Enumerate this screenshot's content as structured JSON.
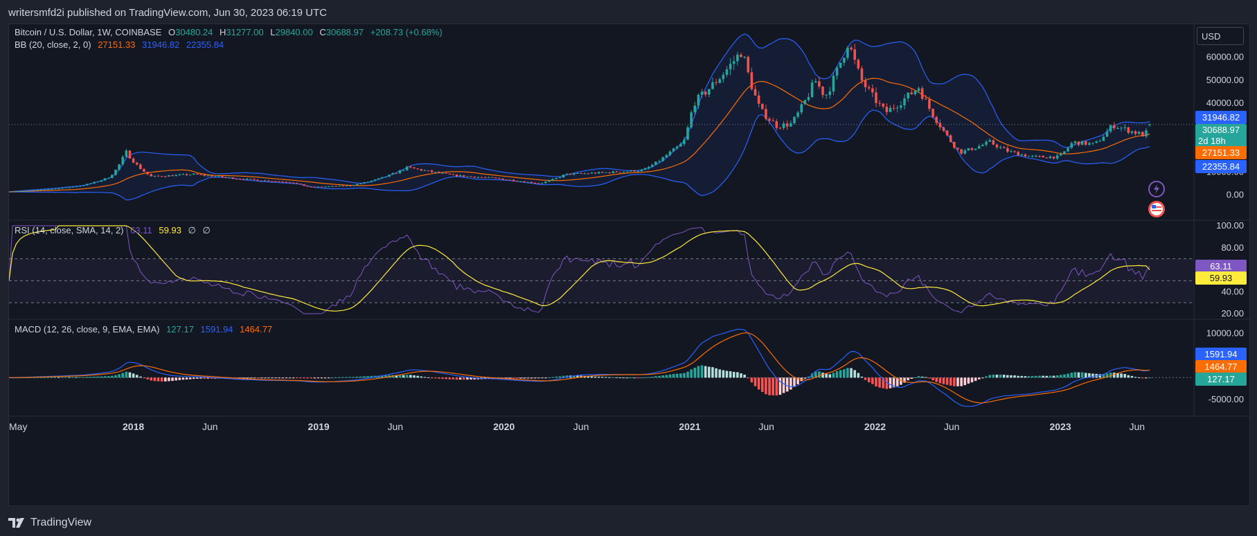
{
  "header": {
    "publisher_line": "writersmfd2i published on TradingView.com, Jun 30, 2023 06:19 UTC"
  },
  "symbol": {
    "name": "Bitcoin / U.S. Dollar, 1W, COINBASE",
    "o_label": "O",
    "o": "30480.24",
    "h_label": "H",
    "h": "31277.00",
    "l_label": "L",
    "l": "29840.00",
    "c_label": "C",
    "c": "30688.97",
    "change": "+208.73 (+0.68%)"
  },
  "bb_legend": {
    "label": "BB (20, close, 2, 0)",
    "basis": "27151.33",
    "upper": "31946.82",
    "lower": "22355.84"
  },
  "rsi_legend": {
    "label": "RSI (14, close, SMA, 14, 2)",
    "rsi": "63.11",
    "sma": "59.93",
    "n1": "∅",
    "n2": "∅"
  },
  "macd_legend": {
    "label": "MACD (12, 26, close, 9, EMA, EMA)",
    "hist": "127.17",
    "macd": "1591.94",
    "signal": "1464.77"
  },
  "currency": "USD",
  "countdown": "2d 18h",
  "brand": "TradingView",
  "colors": {
    "bg": "#131722",
    "up": "#26a69a",
    "down": "#ef5350",
    "bb_band": "#2962ff",
    "bb_basis": "#ff6d00",
    "rsi": "#7e57c2",
    "rsi_ma": "#ffeb3b",
    "macd": "#2962ff",
    "signal": "#ff6d00"
  },
  "chart_data": [
    {
      "type": "candlestick",
      "title": "Bitcoin / U.S. Dollar, 1W, COINBASE",
      "ylim": [
        -5000,
        72000
      ],
      "y_ticks": [
        "0.00",
        "10000.00",
        "20000.00",
        "30000.00",
        "40000.00",
        "50000.00",
        "60000.00"
      ],
      "x_ticks": [
        "May",
        "2018",
        "Jun",
        "2019",
        "Jun",
        "2020",
        "Jun",
        "2021",
        "Jun",
        "2022",
        "Jun",
        "2023",
        "Jun"
      ],
      "anchors_date": [
        "2017-05-01",
        "2017-07-15",
        "2017-09-15",
        "2017-11-15",
        "2017-12-17",
        "2018-02-05",
        "2018-05-01",
        "2018-08-01",
        "2018-11-10",
        "2018-12-15",
        "2019-03-01",
        "2019-06-25",
        "2019-09-25",
        "2019-12-20",
        "2020-03-12",
        "2020-05-01",
        "2020-07-25",
        "2020-10-01",
        "2020-11-20",
        "2020-12-20",
        "2021-01-08",
        "2021-02-15",
        "2021-04-14",
        "2021-05-20",
        "2021-06-22",
        "2021-07-20",
        "2021-09-05",
        "2021-09-25",
        "2021-11-09",
        "2021-12-05",
        "2022-01-22",
        "2022-03-28",
        "2022-05-10",
        "2022-06-18",
        "2022-08-15",
        "2022-09-20",
        "2022-11-09",
        "2022-12-30",
        "2023-01-25",
        "2023-03-10",
        "2023-04-14",
        "2023-06-15",
        "2023-06-30"
      ],
      "anchors_close": [
        1400,
        2500,
        3800,
        7800,
        19000,
        8000,
        9000,
        7000,
        5500,
        3400,
        4000,
        12000,
        8500,
        7200,
        5000,
        9000,
        9800,
        10800,
        18000,
        23000,
        40000,
        48000,
        63000,
        37000,
        30000,
        31000,
        50000,
        43000,
        67000,
        50000,
        36000,
        47000,
        30000,
        18500,
        23000,
        19000,
        16500,
        16600,
        23000,
        22000,
        30500,
        26000,
        30689
      ],
      "last_bar": {
        "o": 30480.24,
        "h": 31277.0,
        "l": 29840.0,
        "c": 30688.97
      },
      "price_labels": [
        "31946.82",
        "30688.97",
        "27151.33",
        "22355.84"
      ]
    },
    {
      "type": "line",
      "title": "RSI (14, close, SMA, 14, 2)",
      "ylim": [
        20,
        100
      ],
      "y_ticks": [
        "20.00",
        "40.00",
        "60.00",
        "80.00",
        "100.00"
      ],
      "bands": [
        70,
        50,
        30
      ],
      "series": [
        {
          "name": "RSI",
          "last": 63.11
        },
        {
          "name": "SMA",
          "last": 59.93
        }
      ],
      "labels": [
        "63.11",
        "59.93"
      ]
    },
    {
      "type": "bar",
      "title": "MACD (12, 26, close, 9, EMA, EMA)",
      "ylim": [
        -7500,
        12000
      ],
      "y_ticks": [
        "10000.00",
        "-5000.00"
      ],
      "series": [
        {
          "name": "Histogram",
          "last": 127.17
        },
        {
          "name": "MACD",
          "last": 1591.94
        },
        {
          "name": "Signal",
          "last": 1464.77
        }
      ],
      "labels": [
        "1591.94",
        "1464.77",
        "127.17"
      ]
    }
  ]
}
